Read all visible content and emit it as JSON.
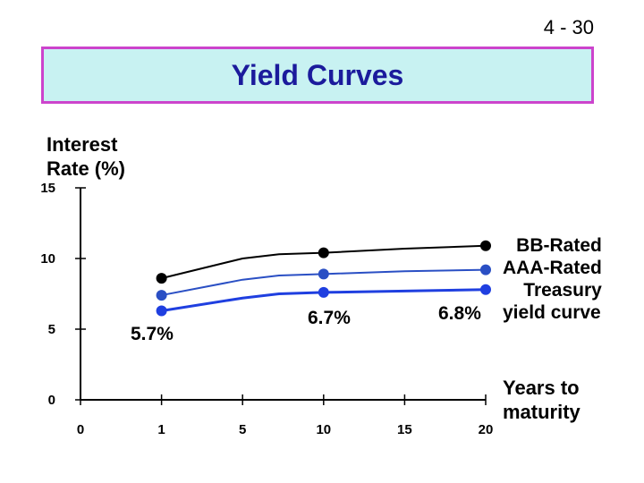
{
  "slide_number": "4 - 30",
  "chart_data": {
    "type": "line",
    "title": "Yield Curves",
    "ylabel": "Interest\nRate (%)",
    "xlabel": "Years to\nmaturity",
    "categories": [
      "0",
      "1",
      "5",
      "10",
      "15",
      "20"
    ],
    "x_ticks": [
      "0",
      "1",
      "5",
      "10",
      "15",
      "20"
    ],
    "y_ticks": [
      "0",
      "5",
      "10",
      "15"
    ],
    "ylim": [
      0,
      15
    ],
    "grid": false,
    "legend_placement": "right",
    "series": [
      {
        "name": "BB-Rated",
        "color": "#000000",
        "points": [
          [
            1,
            8.6
          ],
          [
            3,
            10.0
          ],
          [
            4,
            10.3
          ],
          [
            5,
            10.4
          ],
          [
            7,
            10.7
          ],
          [
            10,
            10.9
          ]
        ],
        "markers": [
          1,
          5,
          10
        ]
      },
      {
        "name": "AAA-Rated",
        "color": "#2a4fc4",
        "points": [
          [
            1,
            7.4
          ],
          [
            3,
            8.5
          ],
          [
            4,
            8.8
          ],
          [
            5,
            8.9
          ],
          [
            7,
            9.1
          ],
          [
            10,
            9.2
          ]
        ],
        "markers": [
          1,
          5,
          10
        ]
      },
      {
        "name": "Treasury\nyield curve",
        "color": "#1f3fe0",
        "points": [
          [
            1,
            6.3
          ],
          [
            3,
            7.2
          ],
          [
            4,
            7.5
          ],
          [
            5,
            7.6
          ],
          [
            7,
            7.7
          ],
          [
            10,
            7.8
          ]
        ],
        "markers": [
          1,
          5,
          10
        ]
      }
    ],
    "annotations": [
      "5.7%",
      "6.7%",
      "6.8%"
    ]
  }
}
